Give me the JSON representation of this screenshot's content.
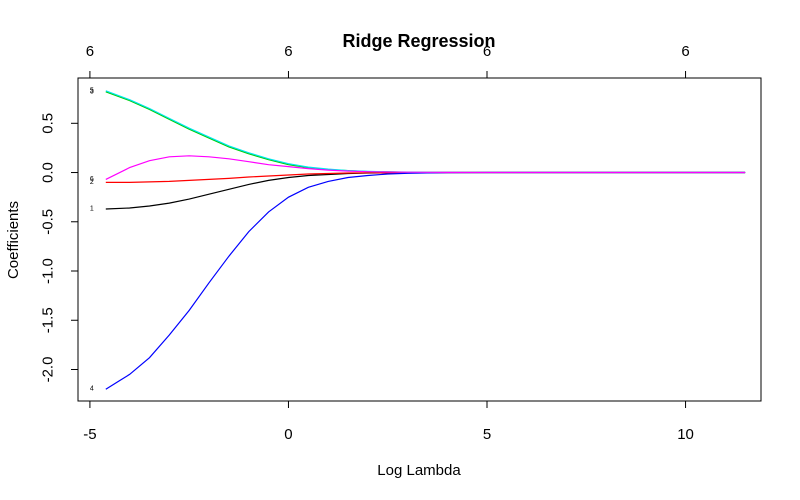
{
  "chart_data": {
    "type": "line",
    "title": "Ridge Regression",
    "xlabel": "Log Lambda",
    "ylabel": "Coefficients",
    "xlim": [
      -5.3,
      11.9
    ],
    "ylim": [
      -2.32,
      0.96
    ],
    "x_ticks": [
      -5,
      0,
      5,
      10
    ],
    "x_tick_labels": [
      "-5",
      "0",
      "5",
      "10"
    ],
    "y_ticks": [
      -2.0,
      -1.5,
      -1.0,
      -0.5,
      0.0,
      0.5
    ],
    "y_tick_labels": [
      "-2.0",
      "-1.5",
      "-1.0",
      "-0.5",
      "0.0",
      "0.5"
    ],
    "top_axis_ticks": [
      -5,
      0,
      5,
      10
    ],
    "top_axis_labels": [
      "6",
      "6",
      "6",
      "6"
    ],
    "grid": false,
    "legend": "none",
    "x": [
      -4.6,
      -4,
      -3.5,
      -3,
      -2.5,
      -2,
      -1.5,
      -1,
      -0.5,
      0,
      0.5,
      1,
      1.5,
      2,
      2.5,
      3,
      3.5,
      4,
      5,
      6,
      7,
      8,
      9,
      10,
      11.5
    ],
    "series": [
      {
        "label": "1",
        "color": "#000000",
        "values": [
          -0.37,
          -0.36,
          -0.34,
          -0.31,
          -0.27,
          -0.22,
          -0.17,
          -0.12,
          -0.08,
          -0.05,
          -0.03,
          -0.02,
          -0.01,
          -0.005,
          -0.003,
          -0.002,
          -0.001,
          0,
          0,
          0,
          0,
          0,
          0,
          0,
          0
        ]
      },
      {
        "label": "2",
        "color": "#ff0000",
        "values": [
          -0.1,
          -0.1,
          -0.095,
          -0.09,
          -0.08,
          -0.07,
          -0.06,
          -0.045,
          -0.035,
          -0.025,
          -0.015,
          -0.01,
          -0.005,
          -0.003,
          -0.002,
          -0.001,
          0,
          0,
          0,
          0,
          0,
          0,
          0,
          0,
          0
        ]
      },
      {
        "label": "3",
        "color": "#00cd00",
        "values": [
          0.82,
          0.73,
          0.64,
          0.54,
          0.44,
          0.35,
          0.26,
          0.19,
          0.13,
          0.08,
          0.05,
          0.03,
          0.02,
          0.01,
          0.006,
          0.003,
          0.002,
          0.001,
          0,
          0,
          0,
          0,
          0,
          0,
          0
        ]
      },
      {
        "label": "4",
        "color": "#0000ff",
        "values": [
          -2.2,
          -2.05,
          -1.88,
          -1.65,
          -1.4,
          -1.12,
          -0.85,
          -0.6,
          -0.4,
          -0.25,
          -0.15,
          -0.09,
          -0.05,
          -0.03,
          -0.015,
          -0.008,
          -0.004,
          -0.002,
          0,
          0,
          0,
          0,
          0,
          0,
          0
        ]
      },
      {
        "label": "5",
        "color": "#00e5ee",
        "values": [
          0.83,
          0.74,
          0.65,
          0.55,
          0.45,
          0.36,
          0.27,
          0.2,
          0.14,
          0.09,
          0.055,
          0.035,
          0.02,
          0.012,
          0.007,
          0.004,
          0.002,
          0.001,
          0,
          0,
          0,
          0,
          0,
          0,
          0
        ]
      },
      {
        "label": "6",
        "color": "#ff00ff",
        "values": [
          -0.07,
          0.05,
          0.12,
          0.16,
          0.17,
          0.16,
          0.14,
          0.11,
          0.08,
          0.06,
          0.04,
          0.025,
          0.015,
          0.009,
          0.005,
          0.003,
          0.002,
          0.001,
          0,
          0,
          0,
          0,
          0,
          0,
          0
        ]
      }
    ]
  }
}
